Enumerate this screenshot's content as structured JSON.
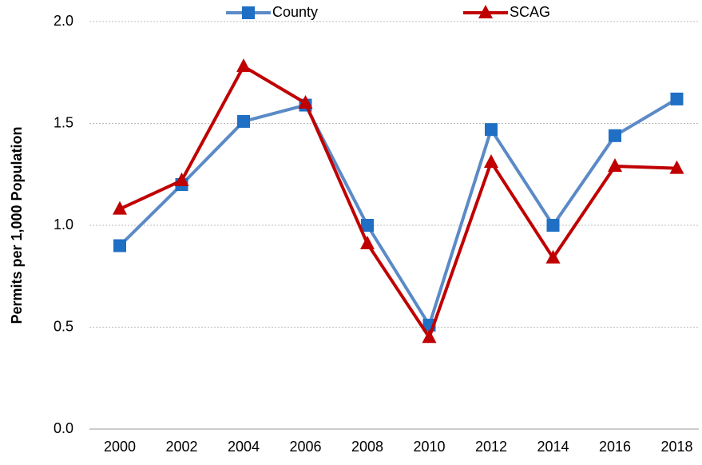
{
  "chart_data": {
    "type": "line",
    "y_label": "Permits per 1,000 Population",
    "categories": [
      "2000",
      "2002",
      "2004",
      "2006",
      "2008",
      "2010",
      "2012",
      "2014",
      "2016",
      "2018"
    ],
    "series": [
      {
        "name": "County",
        "color": "#5b8ac6",
        "marker_color": "#1f6fc5",
        "marker": "square",
        "values": [
          0.9,
          1.2,
          1.51,
          1.59,
          1.0,
          0.51,
          1.47,
          1.0,
          1.44,
          1.62
        ]
      },
      {
        "name": "SCAG",
        "color": "#c00000",
        "marker_color": "#c00000",
        "marker": "triangle",
        "values": [
          1.08,
          1.22,
          1.78,
          1.6,
          0.91,
          0.45,
          1.31,
          0.84,
          1.29,
          1.28
        ]
      }
    ],
    "ylim": [
      0,
      2
    ],
    "yticks": [
      {
        "value": 0,
        "label": "0.0"
      },
      {
        "value": 0.5,
        "label": "0.5"
      },
      {
        "value": 1,
        "label": "1.0"
      },
      {
        "value": 1.5,
        "label": "1.5"
      },
      {
        "value": 2,
        "label": "2.0"
      }
    ],
    "grid": true,
    "legend": "top"
  }
}
